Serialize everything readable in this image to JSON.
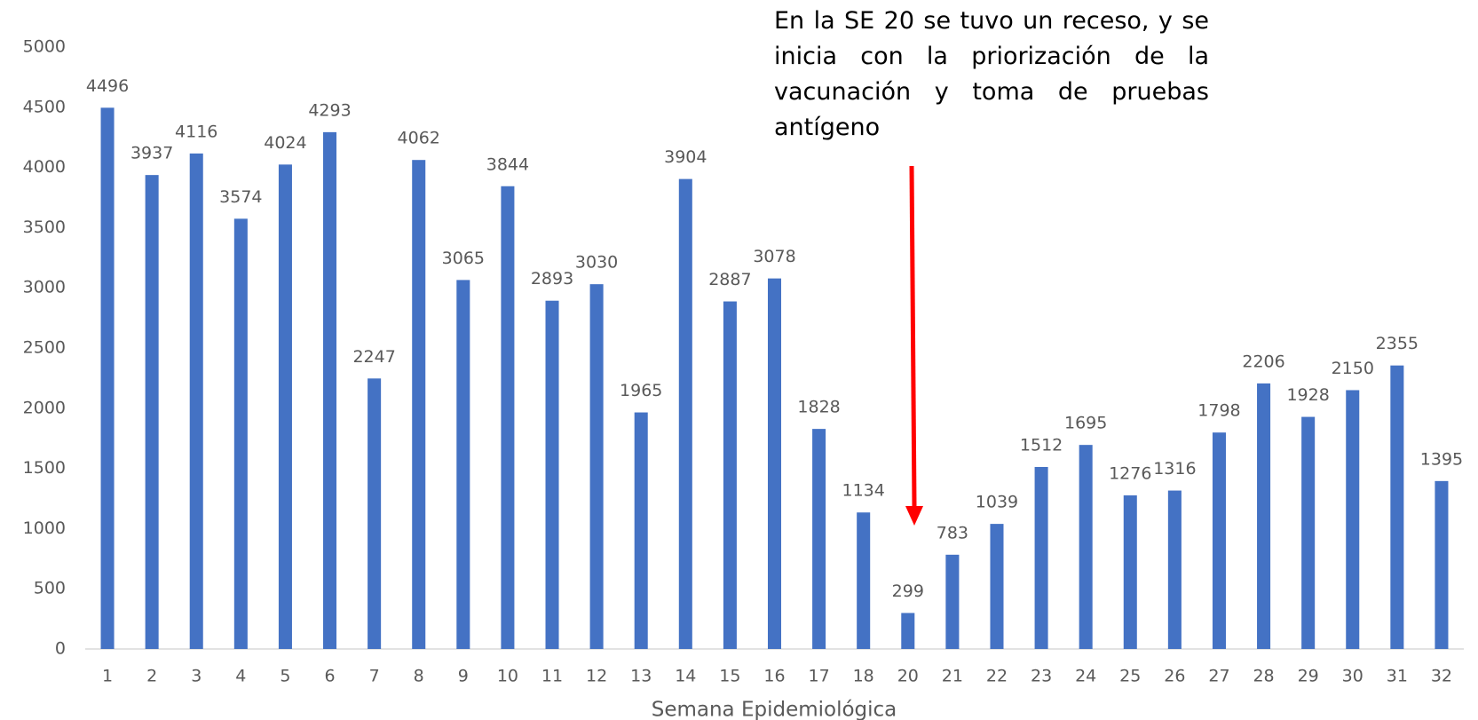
{
  "chart_data": {
    "type": "bar",
    "annotation": "En la SE 20 se tuvo un receso, y se inicia con la priorización de la vacunación y toma de pruebas antígeno",
    "x_label": "Semana Epidemiológica",
    "categories": [
      "1",
      "2",
      "3",
      "4",
      "5",
      "6",
      "7",
      "8",
      "9",
      "10",
      "11",
      "12",
      "13",
      "14",
      "15",
      "16",
      "17",
      "18",
      "20",
      "21",
      "22",
      "23",
      "24",
      "25",
      "26",
      "27",
      "28",
      "29",
      "30",
      "31",
      "32"
    ],
    "values": [
      4496,
      3937,
      4116,
      3574,
      4024,
      4293,
      2247,
      4062,
      3065,
      3844,
      2893,
      3030,
      1965,
      3904,
      2887,
      3078,
      1828,
      1134,
      299,
      783,
      1039,
      1512,
      1695,
      1276,
      1316,
      1798,
      2206,
      1928,
      2150,
      2355,
      1395
    ],
    "color": "#4472c4",
    "ylim": [
      0,
      5000
    ],
    "yticks": [
      0,
      500,
      1000,
      1500,
      2000,
      2500,
      3000,
      3500,
      4000,
      4500,
      5000
    ],
    "grid": false
  }
}
